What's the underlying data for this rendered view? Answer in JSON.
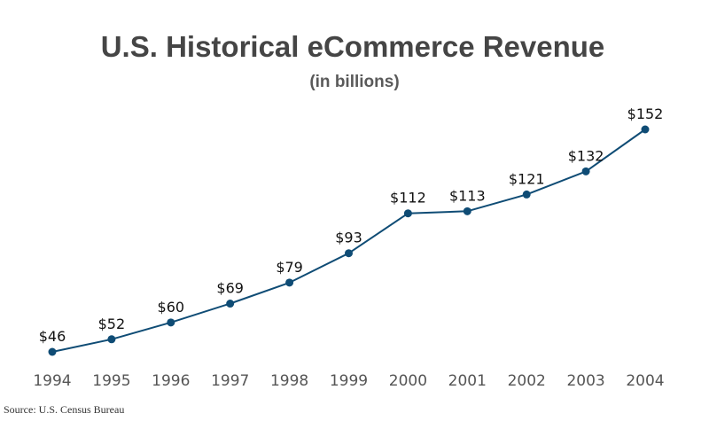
{
  "chart_data": {
    "type": "line",
    "title": "U.S. Historical eCommerce Revenue",
    "subtitle": "(in billions)",
    "xlabel": "",
    "ylabel": "",
    "categories": [
      "1994",
      "1995",
      "1996",
      "1997",
      "1998",
      "1999",
      "2000",
      "2001",
      "2002",
      "2003",
      "2004"
    ],
    "series": [
      {
        "name": "eCommerce Revenue",
        "values": [
          46,
          52,
          60,
          69,
          79,
          93,
          112,
          113,
          121,
          132,
          152
        ],
        "labels": [
          "$46",
          "$52",
          "$60",
          "$69",
          "$79",
          "$93",
          "$112",
          "$113",
          "$121",
          "$132",
          "$152"
        ],
        "color": "#0f4c75"
      }
    ],
    "ylim": [
      46,
      152
    ],
    "grid": false,
    "legend": "none",
    "source": "Source: U.S. Census Bureau"
  }
}
